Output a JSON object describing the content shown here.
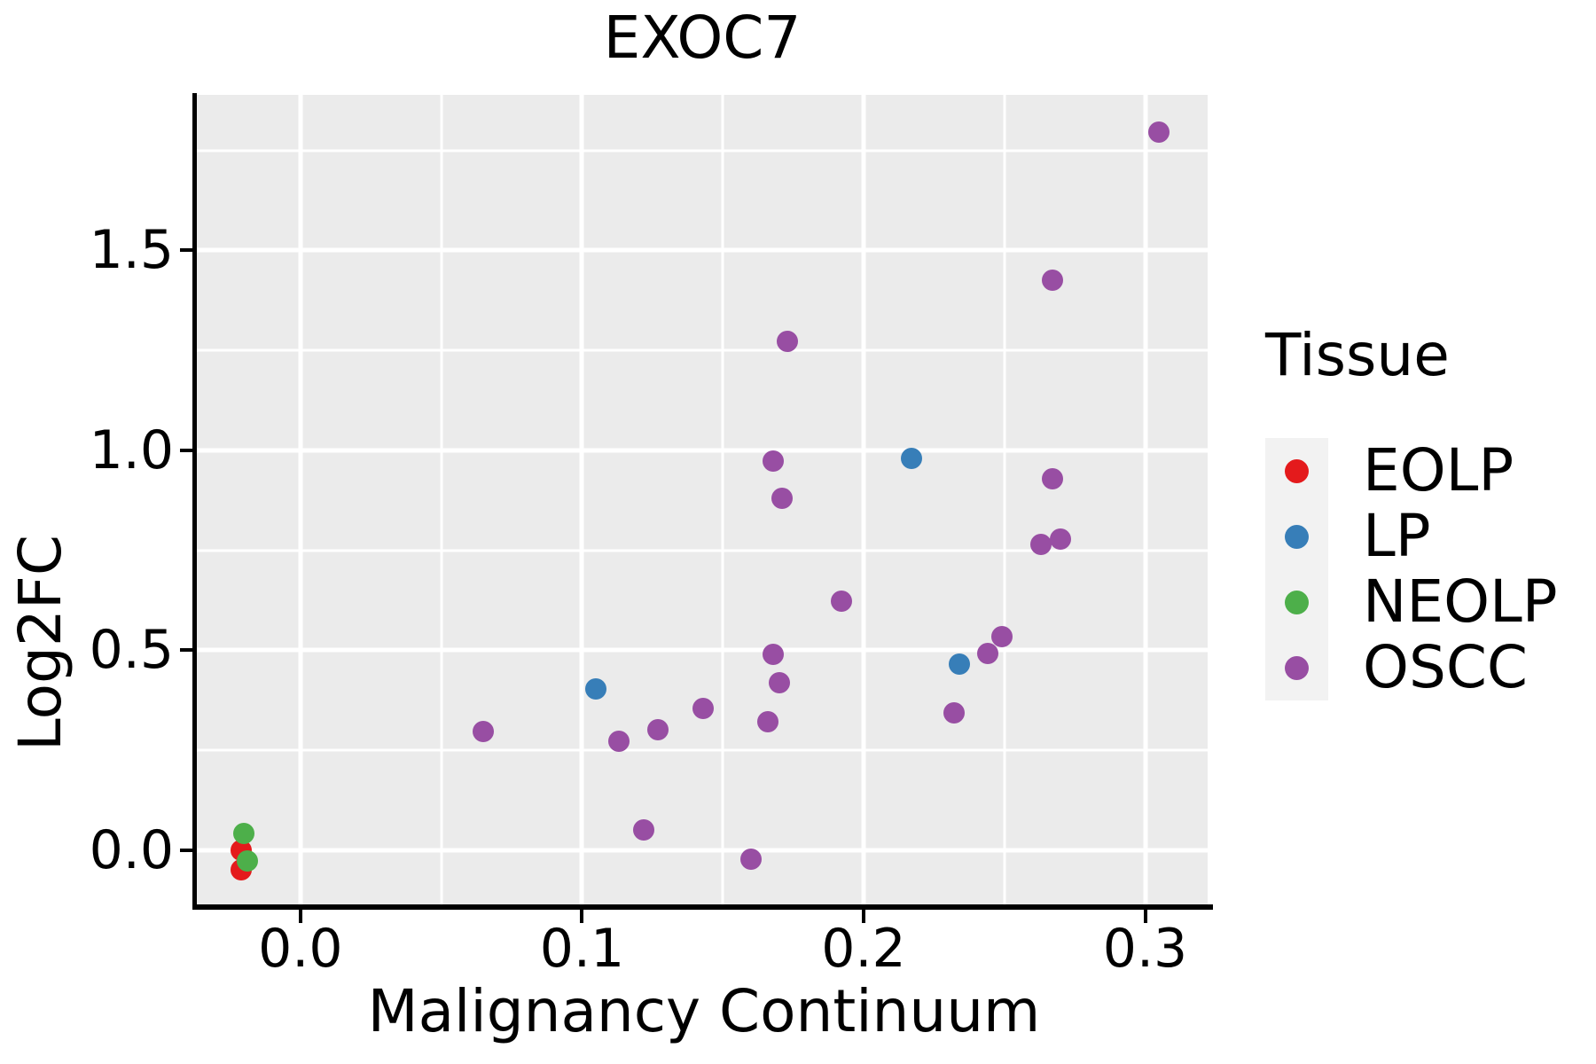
{
  "title": "EXOC7",
  "legend": {
    "title": "Tissue",
    "items": [
      {
        "label": "EOLP",
        "color": "#E41A1C"
      },
      {
        "label": "LP",
        "color": "#377EB8"
      },
      {
        "label": "NEOLP",
        "color": "#4DAF4A"
      },
      {
        "label": "OSCC",
        "color": "#984EA3"
      }
    ]
  },
  "chart_data": {
    "type": "scatter",
    "title": "EXOC7",
    "xlabel": "Malignancy Continuum",
    "ylabel": "Log2FC",
    "xlim": [
      -0.0368,
      0.3222
    ],
    "ylim": [
      -0.1397,
      1.8891
    ],
    "x_ticks": {
      "values": [
        0.0,
        0.1,
        0.2,
        0.3
      ],
      "labels": [
        "0.0",
        "0.1",
        "0.2",
        "0.3"
      ],
      "minor": [
        0.05,
        0.15,
        0.25
      ]
    },
    "y_ticks": {
      "values": [
        0.0,
        0.5,
        1.0,
        1.5
      ],
      "labels": [
        "0.0",
        "0.5",
        "1.0",
        "1.5"
      ],
      "minor": [
        0.25,
        0.75,
        1.25,
        1.75
      ]
    },
    "grid": "major-and-minor-white-on-gray",
    "legend_position": "right",
    "panel_background": "#EBEBEB",
    "gridline_color": "#FFFFFF",
    "series": [
      {
        "name": "EOLP",
        "color": "#E41A1C",
        "points": [
          [
            -0.021,
            0.001
          ],
          [
            -0.021,
            -0.049
          ]
        ]
      },
      {
        "name": "LP",
        "color": "#377EB8",
        "points": [
          [
            0.105,
            0.404
          ],
          [
            0.217,
            0.981
          ],
          [
            0.234,
            0.466
          ]
        ]
      },
      {
        "name": "NEOLP",
        "color": "#4DAF4A",
        "points": [
          [
            -0.02,
            0.042
          ],
          [
            -0.019,
            -0.026
          ]
        ]
      },
      {
        "name": "OSCC",
        "color": "#984EA3",
        "points": [
          [
            0.065,
            0.297
          ],
          [
            0.113,
            0.273
          ],
          [
            0.122,
            0.052
          ],
          [
            0.127,
            0.302
          ],
          [
            0.143,
            0.355
          ],
          [
            0.16,
            -0.022
          ],
          [
            0.166,
            0.322
          ],
          [
            0.17,
            0.42
          ],
          [
            0.168,
            0.49
          ],
          [
            0.171,
            0.881
          ],
          [
            0.168,
            0.973
          ],
          [
            0.173,
            1.273
          ],
          [
            0.192,
            0.623
          ],
          [
            0.232,
            0.344
          ],
          [
            0.244,
            0.493
          ],
          [
            0.249,
            0.535
          ],
          [
            0.263,
            0.764
          ],
          [
            0.27,
            0.779
          ],
          [
            0.267,
            0.929
          ],
          [
            0.267,
            1.426
          ],
          [
            0.305,
            1.796
          ]
        ]
      }
    ]
  }
}
